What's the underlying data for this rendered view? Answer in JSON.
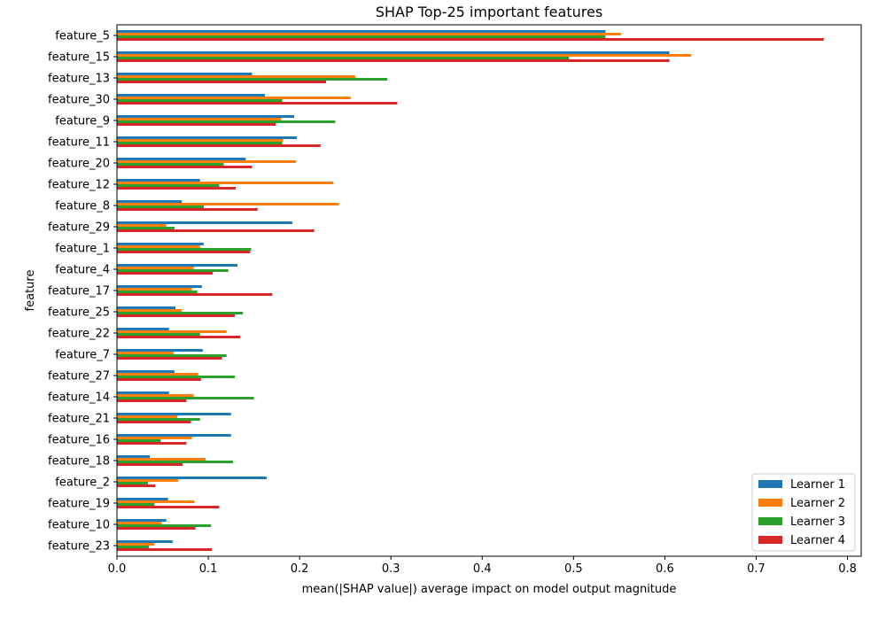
{
  "chart_data": {
    "type": "bar",
    "orientation": "horizontal",
    "title": "SHAP Top-25 important features",
    "xlabel": "mean(|SHAP value|) average impact on model output magnitude",
    "ylabel": "feature",
    "xlim": [
      0,
      0.815
    ],
    "xticks": [
      0.0,
      0.1,
      0.2,
      0.3,
      0.4,
      0.5,
      0.6,
      0.7,
      0.8
    ],
    "xtick_labels": [
      "0.0",
      "0.1",
      "0.2",
      "0.3",
      "0.4",
      "0.5",
      "0.6",
      "0.7",
      "0.8"
    ],
    "grid": false,
    "legend_position": "lower-right",
    "categories": [
      "feature_5",
      "feature_15",
      "feature_13",
      "feature_30",
      "feature_9",
      "feature_11",
      "feature_20",
      "feature_12",
      "feature_8",
      "feature_29",
      "feature_1",
      "feature_4",
      "feature_17",
      "feature_25",
      "feature_22",
      "feature_7",
      "feature_27",
      "feature_14",
      "feature_21",
      "feature_16",
      "feature_18",
      "feature_2",
      "feature_19",
      "feature_10",
      "feature_23"
    ],
    "series": [
      {
        "name": "Learner 1",
        "color": "#1f77b4",
        "values": [
          0.535,
          0.605,
          0.148,
          0.162,
          0.194,
          0.197,
          0.141,
          0.091,
          0.071,
          0.192,
          0.095,
          0.132,
          0.093,
          0.064,
          0.057,
          0.094,
          0.063,
          0.057,
          0.125,
          0.125,
          0.036,
          0.164,
          0.056,
          0.054,
          0.061
        ]
      },
      {
        "name": "Learner 2",
        "color": "#ff7f0e",
        "values": [
          0.552,
          0.629,
          0.261,
          0.256,
          0.18,
          0.182,
          0.196,
          0.237,
          0.243,
          0.054,
          0.091,
          0.084,
          0.082,
          0.071,
          0.12,
          0.062,
          0.089,
          0.084,
          0.066,
          0.082,
          0.097,
          0.067,
          0.085,
          0.049,
          0.041
        ]
      },
      {
        "name": "Learner 3",
        "color": "#2ca02c",
        "values": [
          0.535,
          0.495,
          0.296,
          0.181,
          0.239,
          0.181,
          0.117,
          0.112,
          0.095,
          0.063,
          0.147,
          0.122,
          0.088,
          0.138,
          0.091,
          0.12,
          0.129,
          0.15,
          0.091,
          0.048,
          0.127,
          0.034,
          0.041,
          0.103,
          0.035
        ]
      },
      {
        "name": "Learner 4",
        "color": "#d62728",
        "values": [
          0.774,
          0.605,
          0.229,
          0.307,
          0.174,
          0.223,
          0.148,
          0.13,
          0.154,
          0.216,
          0.146,
          0.105,
          0.17,
          0.129,
          0.135,
          0.115,
          0.092,
          0.076,
          0.081,
          0.076,
          0.072,
          0.042,
          0.112,
          0.086,
          0.104
        ]
      }
    ]
  }
}
